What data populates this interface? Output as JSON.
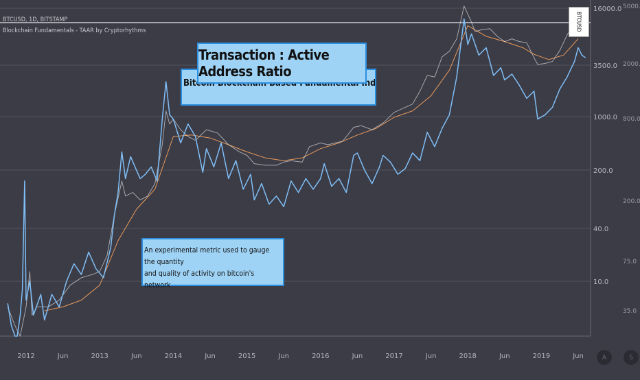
{
  "header": {
    "symbol_line": "BTCUSD, 1D, BITSTAMP",
    "indicator_line": "Blockchain Fundamentals - TAAR by Cryptorhythms"
  },
  "callouts": {
    "title": "Transaction : Active Address Ratio",
    "subtitle": "Bitcoin Blockchain Based Fundamental Indicator",
    "note_line1": "An experimental metric used to gauge the quantity",
    "note_line2": "and quality of activity on bitcoin's network"
  },
  "symbol_tag": "BTCUSD",
  "axis_buttons": {
    "auto": "A",
    "log": "S"
  },
  "chart_data": {
    "type": "line",
    "x_tick_labels": [
      "2012",
      "Jun",
      "2013",
      "Jun",
      "2014",
      "Jun",
      "2015",
      "Jun",
      "2016",
      "Jun",
      "2017",
      "Jun",
      "2018",
      "Jun",
      "2019",
      "Jun"
    ],
    "right_axis_price": [
      "16000.0",
      "3500.0",
      "1000.0",
      "200.0",
      "40.0",
      "10.0"
    ],
    "right_axis_indicator": [
      "5000.0",
      "2000.0",
      "800.0",
      "200.0",
      "75.0",
      "35.0"
    ],
    "y_scale": "log",
    "grid": true,
    "series": [
      {
        "color": "#ffffff",
        "values": [
          [
            2011.75,
            5
          ],
          [
            2011.85,
            3
          ],
          [
            2011.92,
            2.2
          ],
          [
            2012.0,
            5
          ],
          [
            2012.05,
            13
          ],
          [
            2012.08,
            4
          ],
          [
            2012.15,
            5
          ],
          [
            2012.3,
            5
          ],
          [
            2012.45,
            6
          ],
          [
            2012.6,
            9
          ],
          [
            2012.75,
            11
          ],
          [
            2012.9,
            12
          ],
          [
            2013.0,
            13
          ],
          [
            2013.1,
            20
          ],
          [
            2013.2,
            60
          ],
          [
            2013.3,
            150
          ],
          [
            2013.35,
            100
          ],
          [
            2013.45,
            110
          ],
          [
            2013.55,
            90
          ],
          [
            2013.65,
            100
          ],
          [
            2013.75,
            140
          ],
          [
            2013.85,
            400
          ],
          [
            2013.9,
            1000
          ],
          [
            2013.95,
            700
          ],
          [
            2014.0,
            800
          ],
          [
            2014.1,
            600
          ],
          [
            2014.2,
            500
          ],
          [
            2014.3,
            450
          ],
          [
            2014.45,
            600
          ],
          [
            2014.6,
            550
          ],
          [
            2014.75,
            400
          ],
          [
            2014.9,
            330
          ],
          [
            2015.0,
            300
          ],
          [
            2015.1,
            240
          ],
          [
            2015.25,
            230
          ],
          [
            2015.4,
            230
          ],
          [
            2015.5,
            250
          ],
          [
            2015.6,
            260
          ],
          [
            2015.75,
            250
          ],
          [
            2015.85,
            380
          ],
          [
            2016.0,
            420
          ],
          [
            2016.1,
            400
          ],
          [
            2016.3,
            440
          ],
          [
            2016.45,
            640
          ],
          [
            2016.55,
            670
          ],
          [
            2016.7,
            600
          ],
          [
            2016.85,
            720
          ],
          [
            2017.0,
            960
          ],
          [
            2017.1,
            1050
          ],
          [
            2017.25,
            1200
          ],
          [
            2017.35,
            1700
          ],
          [
            2017.45,
            2600
          ],
          [
            2017.55,
            2500
          ],
          [
            2017.65,
            4300
          ],
          [
            2017.75,
            5000
          ],
          [
            2017.85,
            7000
          ],
          [
            2017.95,
            17000
          ],
          [
            2018.05,
            11000
          ],
          [
            2018.1,
            8500
          ],
          [
            2018.2,
            9000
          ],
          [
            2018.3,
            9200
          ],
          [
            2018.4,
            7500
          ],
          [
            2018.5,
            6500
          ],
          [
            2018.6,
            7000
          ],
          [
            2018.7,
            6500
          ],
          [
            2018.8,
            6300
          ],
          [
            2018.9,
            4200
          ],
          [
            2018.95,
            3500
          ],
          [
            2019.05,
            3600
          ],
          [
            2019.15,
            3800
          ],
          [
            2019.25,
            5100
          ],
          [
            2019.35,
            7800
          ],
          [
            2019.45,
            10500
          ],
          [
            2019.5,
            12500
          ],
          [
            2019.55,
            11000
          ],
          [
            2019.62,
            10000
          ]
        ]
      },
      {
        "color": "#7fbef5",
        "values": [
          [
            2011.75,
            5.5
          ],
          [
            2011.8,
            3
          ],
          [
            2011.85,
            2.2
          ],
          [
            2011.88,
            2
          ],
          [
            2011.92,
            4
          ],
          [
            2011.95,
            8
          ],
          [
            2011.98,
            150
          ],
          [
            2012.0,
            6
          ],
          [
            2012.05,
            10
          ],
          [
            2012.1,
            4
          ],
          [
            2012.2,
            7
          ],
          [
            2012.25,
            3.5
          ],
          [
            2012.35,
            7
          ],
          [
            2012.45,
            5
          ],
          [
            2012.55,
            10
          ],
          [
            2012.65,
            16
          ],
          [
            2012.75,
            12
          ],
          [
            2012.85,
            22
          ],
          [
            2012.95,
            14
          ],
          [
            2013.05,
            11
          ],
          [
            2013.15,
            25
          ],
          [
            2013.2,
            60
          ],
          [
            2013.25,
            110
          ],
          [
            2013.3,
            330
          ],
          [
            2013.35,
            160
          ],
          [
            2013.42,
            290
          ],
          [
            2013.5,
            200
          ],
          [
            2013.55,
            160
          ],
          [
            2013.62,
            180
          ],
          [
            2013.7,
            220
          ],
          [
            2013.78,
            150
          ],
          [
            2013.85,
            800
          ],
          [
            2013.9,
            2200
          ],
          [
            2013.95,
            900
          ],
          [
            2014.0,
            800
          ],
          [
            2014.1,
            420
          ],
          [
            2014.2,
            700
          ],
          [
            2014.3,
            500
          ],
          [
            2014.4,
            190
          ],
          [
            2014.45,
            360
          ],
          [
            2014.55,
            220
          ],
          [
            2014.65,
            420
          ],
          [
            2014.75,
            160
          ],
          [
            2014.85,
            260
          ],
          [
            2014.95,
            120
          ],
          [
            2015.05,
            180
          ],
          [
            2015.1,
            90
          ],
          [
            2015.2,
            140
          ],
          [
            2015.3,
            80
          ],
          [
            2015.4,
            100
          ],
          [
            2015.5,
            75
          ],
          [
            2015.6,
            150
          ],
          [
            2015.7,
            110
          ],
          [
            2015.8,
            160
          ],
          [
            2015.9,
            120
          ],
          [
            2016.0,
            160
          ],
          [
            2016.05,
            240
          ],
          [
            2016.15,
            130
          ],
          [
            2016.25,
            160
          ],
          [
            2016.35,
            110
          ],
          [
            2016.45,
            300
          ],
          [
            2016.5,
            320
          ],
          [
            2016.6,
            200
          ],
          [
            2016.7,
            140
          ],
          [
            2016.8,
            220
          ],
          [
            2016.85,
            300
          ],
          [
            2016.95,
            250
          ],
          [
            2017.05,
            180
          ],
          [
            2017.15,
            210
          ],
          [
            2017.25,
            320
          ],
          [
            2017.35,
            260
          ],
          [
            2017.45,
            560
          ],
          [
            2017.55,
            380
          ],
          [
            2017.65,
            620
          ],
          [
            2017.75,
            900
          ],
          [
            2017.85,
            2500
          ],
          [
            2017.95,
            12000
          ],
          [
            2018.0,
            6000
          ],
          [
            2018.05,
            8000
          ],
          [
            2018.15,
            4500
          ],
          [
            2018.25,
            5500
          ],
          [
            2018.35,
            2600
          ],
          [
            2018.45,
            3200
          ],
          [
            2018.5,
            2300
          ],
          [
            2018.6,
            2700
          ],
          [
            2018.7,
            2000
          ],
          [
            2018.8,
            1400
          ],
          [
            2018.9,
            1700
          ],
          [
            2018.95,
            800
          ],
          [
            2019.05,
            900
          ],
          [
            2019.15,
            1100
          ],
          [
            2019.25,
            1800
          ],
          [
            2019.35,
            2500
          ],
          [
            2019.45,
            3800
          ],
          [
            2019.5,
            5500
          ],
          [
            2019.55,
            4500
          ],
          [
            2019.6,
            4200
          ]
        ]
      },
      {
        "color": "#e89a5a",
        "values": [
          [
            2012.25,
            4.5
          ],
          [
            2012.5,
            5
          ],
          [
            2012.75,
            6
          ],
          [
            2013.0,
            9
          ],
          [
            2013.25,
            30
          ],
          [
            2013.5,
            70
          ],
          [
            2013.75,
            120
          ],
          [
            2014.0,
            500
          ],
          [
            2014.25,
            520
          ],
          [
            2014.5,
            480
          ],
          [
            2014.75,
            400
          ],
          [
            2015.0,
            330
          ],
          [
            2015.25,
            280
          ],
          [
            2015.5,
            260
          ],
          [
            2015.75,
            280
          ],
          [
            2016.0,
            360
          ],
          [
            2016.25,
            420
          ],
          [
            2016.5,
            520
          ],
          [
            2016.75,
            620
          ],
          [
            2017.0,
            840
          ],
          [
            2017.25,
            1000
          ],
          [
            2017.5,
            1500
          ],
          [
            2017.75,
            3000
          ],
          [
            2018.0,
            10000
          ],
          [
            2018.25,
            7500
          ],
          [
            2018.5,
            6500
          ],
          [
            2018.75,
            5500
          ],
          [
            2018.9,
            4600
          ],
          [
            2019.1,
            4000
          ],
          [
            2019.3,
            4500
          ],
          [
            2019.5,
            7000
          ]
        ]
      }
    ]
  }
}
